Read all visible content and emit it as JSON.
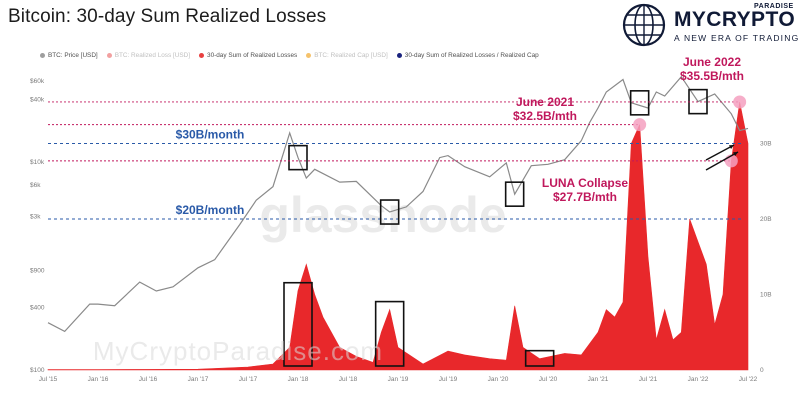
{
  "title": "Bitcoin: 30-day Sum Realized Losses",
  "brand": {
    "name": "MYCRYPTO",
    "sub": "PARADISE",
    "tagline": "A NEW ERA OF TRADING",
    "logo_icon": "globe-icon",
    "colors": {
      "navy": "#101a36"
    }
  },
  "legend": [
    {
      "label": "BTC: Price [USD]",
      "color": "#9e9e9e",
      "faded": false
    },
    {
      "label": "BTC: Realized Loss [USD]",
      "color": "#f2a0a0",
      "faded": true
    },
    {
      "label": "30-day Sum of Realized Losses",
      "color": "#e84040",
      "faded": false
    },
    {
      "label": "BTC: Realized Cap [USD]",
      "color": "#f5c26b",
      "faded": true
    },
    {
      "label": "30-day Sum of Realized Losses / Realized Cap",
      "color": "#1a237e",
      "faded": false
    }
  ],
  "watermark": "glassnode",
  "site_watermark": "MyCryptoParadise.com",
  "chart_data": {
    "type": "area",
    "x_ticks": [
      "Jul '15",
      "Jan '16",
      "Jul '16",
      "Jan '17",
      "Jul '17",
      "Jan '18",
      "Jul '18",
      "Jan '19",
      "Jul '19",
      "Jan '20",
      "Jul '20",
      "Jan '21",
      "Jul '21",
      "Jan '22",
      "Jul '22"
    ],
    "y_left_ticks": [
      "$60k",
      "$40k",
      "$10k",
      "$6k",
      "$3k",
      "$900",
      "$400",
      "$100"
    ],
    "y_right_ticks": [
      "30B",
      "20B",
      "10B",
      "0"
    ],
    "y_right_range": [
      0,
      40
    ],
    "log_left_axis": true,
    "colors": {
      "price": "#8a8a8a",
      "losses": "#e8282b",
      "guide": "#2a5aa8",
      "annot": "#c0185c"
    },
    "series": [
      {
        "name": "BTC: Price [USD]",
        "axis": "left",
        "points": [
          [
            "Jul '15",
            285
          ],
          [
            "Sep '15",
            235
          ],
          [
            "Dec '15",
            430
          ],
          [
            "Jan '16",
            430
          ],
          [
            "Mar '16",
            415
          ],
          [
            "Jun '16",
            700
          ],
          [
            "Aug '16",
            575
          ],
          [
            "Oct '16",
            630
          ],
          [
            "Jan '17",
            960
          ],
          [
            "Mar '17",
            1150
          ],
          [
            "Jun '17",
            2500
          ],
          [
            "Aug '17",
            4300
          ],
          [
            "Oct '17",
            5800
          ],
          [
            "Dec '17",
            19000
          ],
          [
            "Jan '18",
            11000
          ],
          [
            "Feb '18",
            7000
          ],
          [
            "Mar '18",
            8500
          ],
          [
            "Jun '18",
            6400
          ],
          [
            "Aug '18",
            6500
          ],
          [
            "Nov '18",
            3800
          ],
          [
            "Dec '18",
            3300
          ],
          [
            "Feb '19",
            3700
          ],
          [
            "Apr '19",
            5200
          ],
          [
            "Jun '19",
            11000
          ],
          [
            "Jul '19",
            11500
          ],
          [
            "Sep '19",
            9000
          ],
          [
            "Dec '19",
            7200
          ],
          [
            "Feb '20",
            9800
          ],
          [
            "Mar '20",
            4900
          ],
          [
            "May '20",
            9200
          ],
          [
            "Jul '20",
            9500
          ],
          [
            "Sep '20",
            10500
          ],
          [
            "Nov '20",
            16000
          ],
          [
            "Dec '20",
            24000
          ],
          [
            "Jan '21",
            33000
          ],
          [
            "Feb '21",
            47000
          ],
          [
            "Apr '21",
            62000
          ],
          [
            "May '21",
            37000
          ],
          [
            "Jul '21",
            33000
          ],
          [
            "Aug '21",
            47000
          ],
          [
            "Sep '21",
            43000
          ],
          [
            "Nov '21",
            66000
          ],
          [
            "Jan '22",
            38000
          ],
          [
            "Mar '22",
            45000
          ],
          [
            "May '22",
            29000
          ],
          [
            "Jun '22",
            20000
          ],
          [
            "Jul '22",
            21000
          ]
        ]
      },
      {
        "name": "30-day Sum of Realized Losses",
        "axis": "right",
        "unit": "B USD",
        "points": [
          [
            "Jul '15",
            0.05
          ],
          [
            "Jan '16",
            0.05
          ],
          [
            "Jul '16",
            0.08
          ],
          [
            "Jan '17",
            0.1
          ],
          [
            "Jul '17",
            0.4
          ],
          [
            "Oct '17",
            0.8
          ],
          [
            "Dec '17",
            3.0
          ],
          [
            "Jan '18",
            10.5
          ],
          [
            "Feb '18",
            14.0
          ],
          [
            "Mar '18",
            10.0
          ],
          [
            "Apr '18",
            7.0
          ],
          [
            "Jun '18",
            3.0
          ],
          [
            "Aug '18",
            1.8
          ],
          [
            "Oct '18",
            1.0
          ],
          [
            "Nov '18",
            5.0
          ],
          [
            "Dec '18",
            8.0
          ],
          [
            "Jan '19",
            3.0
          ],
          [
            "Apr '19",
            0.8
          ],
          [
            "Jul '19",
            2.5
          ],
          [
            "Sep '19",
            2.0
          ],
          [
            "Dec '19",
            1.5
          ],
          [
            "Feb '20",
            1.3
          ],
          [
            "Mar '20",
            8.5
          ],
          [
            "Apr '20",
            3.0
          ],
          [
            "Jun '20",
            1.5
          ],
          [
            "Sep '20",
            2.2
          ],
          [
            "Nov '20",
            2.0
          ],
          [
            "Jan '21",
            5.0
          ],
          [
            "Feb '21",
            8.0
          ],
          [
            "Mar '21",
            7.0
          ],
          [
            "Apr '21",
            9.0
          ],
          [
            "May '21",
            30.0
          ],
          [
            "Jun '21",
            32.5
          ],
          [
            "Jul '21",
            15.0
          ],
          [
            "Aug '21",
            4.0
          ],
          [
            "Sep '21",
            8.0
          ],
          [
            "Oct '21",
            4.0
          ],
          [
            "Nov '21",
            5.0
          ],
          [
            "Dec '21",
            20.0
          ],
          [
            "Jan '22",
            17.0
          ],
          [
            "Feb '22",
            14.0
          ],
          [
            "Mar '22",
            6.0
          ],
          [
            "Apr '22",
            10.0
          ],
          [
            "May '22",
            27.7
          ],
          [
            "Jun '22",
            35.5
          ],
          [
            "Jul '22",
            30.0
          ]
        ]
      }
    ],
    "guides": [
      {
        "label": "$30B/month",
        "value_b": 30
      },
      {
        "label": "$20B/month",
        "value_b": 20
      }
    ],
    "annotations": [
      {
        "line1": "June 2021",
        "line2": "$32.5B/mth",
        "date": "Jun '21",
        "value_b": 32.5
      },
      {
        "line1": "LUNA Collapse",
        "line2": "$27.7B/mth",
        "date": "May '22",
        "value_b": 27.7
      },
      {
        "line1": "June 2022",
        "line2": "$35.5B/mth",
        "date": "Jun '22",
        "value_b": 35.5
      }
    ],
    "highlight_boxes": [
      "Jan '18",
      "Dec '18",
      "Mar '20",
      "Jun '21",
      "Jan '22"
    ],
    "loss_boxes": [
      "Jan '18",
      "Dec '18",
      "Jun '20"
    ]
  }
}
